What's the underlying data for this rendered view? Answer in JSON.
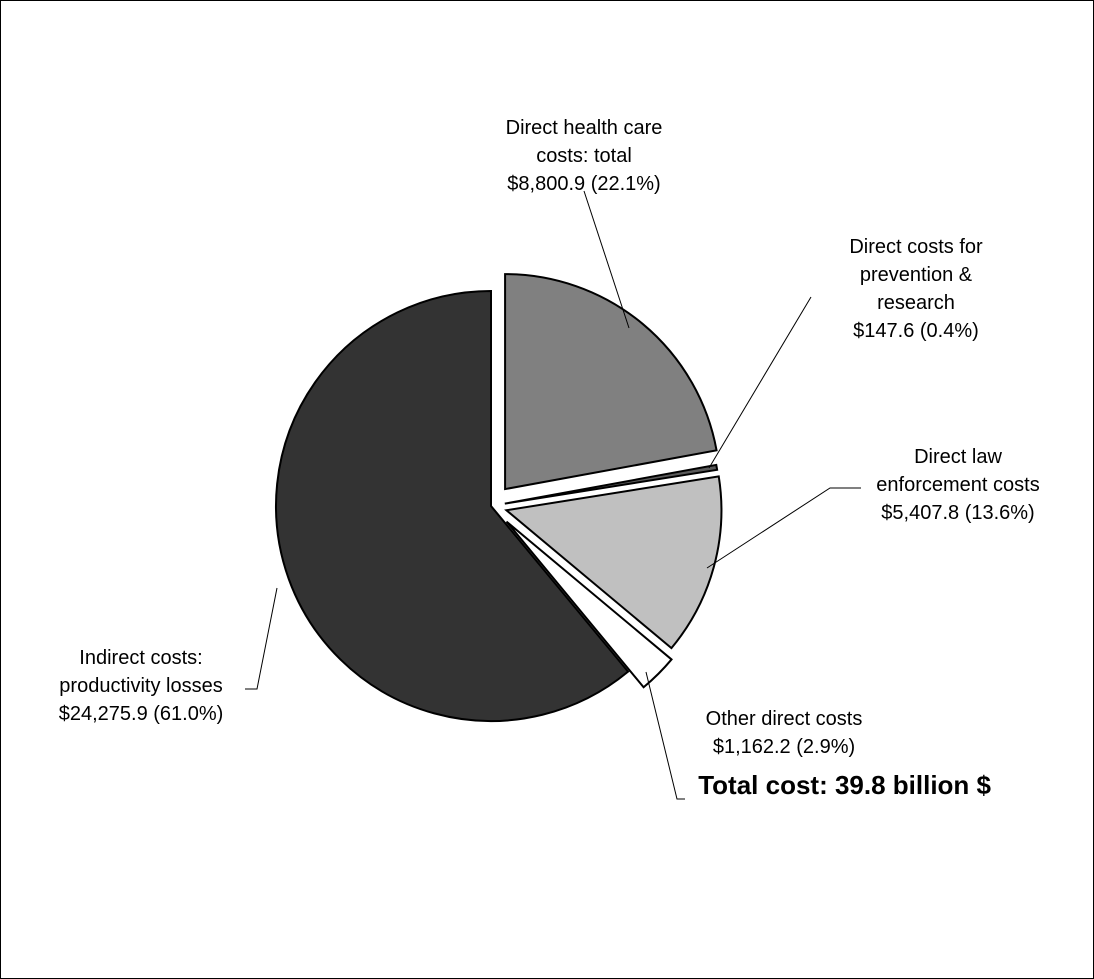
{
  "chart_data": {
    "type": "pie",
    "categories": [
      "Direct health care costs: total",
      "Direct costs for prevention & research",
      "Direct law enforcement costs",
      "Other direct costs",
      "Indirect costs: productivity losses"
    ],
    "values": [
      8800.9,
      147.6,
      5407.8,
      1162.2,
      24275.9
    ],
    "percentages": [
      22.1,
      0.4,
      13.6,
      2.9,
      61.0
    ],
    "colors": [
      "#808080",
      "#5a5a5a",
      "#c0c0c0",
      "#ffffff",
      "#333333"
    ],
    "labels": [
      [
        "Direct health care",
        "costs: total",
        "$8,800.9 (22.1%)"
      ],
      [
        "Direct costs for",
        "prevention &",
        "research",
        "$147.6 (0.4%)"
      ],
      [
        "Direct law",
        "enforcement costs",
        "$5,407.8 (13.6%)"
      ],
      [
        "Other direct costs",
        "$1,162.2 (2.9%)"
      ],
      [
        "Indirect costs:",
        "productivity losses",
        "$24,275.9 (61.0%)"
      ]
    ],
    "annotation": "Total cost: 39.8 billion $",
    "legend": "none"
  }
}
